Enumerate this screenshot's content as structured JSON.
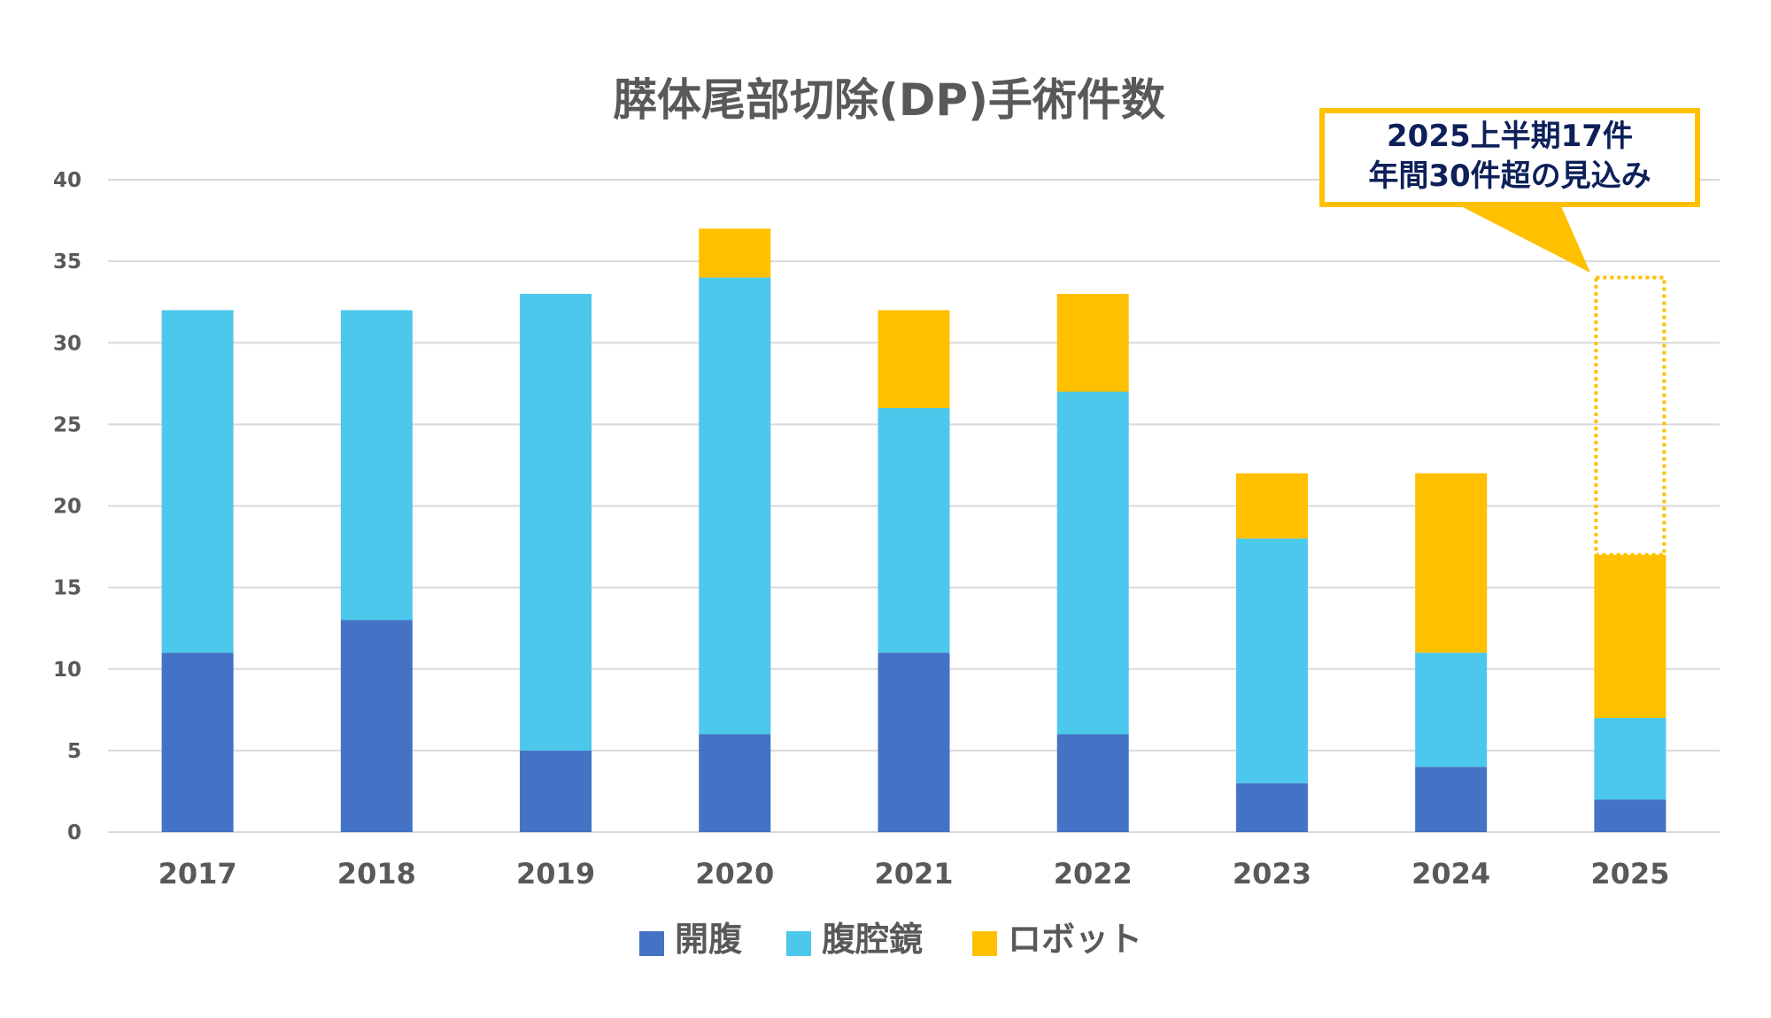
{
  "chart_data": {
    "type": "bar",
    "stacked": true,
    "title": "膵体尾部切除(DP)手術件数",
    "categories": [
      "2017",
      "2018",
      "2019",
      "2020",
      "2021",
      "2022",
      "2023",
      "2024",
      "2025"
    ],
    "series": [
      {
        "name": "開腹",
        "color": "#4472c4",
        "values": [
          11,
          13,
          5,
          6,
          11,
          6,
          3,
          4,
          2
        ]
      },
      {
        "name": "腹腔鏡",
        "color": "#4bc8eb",
        "values": [
          21,
          19,
          28,
          28,
          15,
          21,
          15,
          7,
          5
        ]
      },
      {
        "name": "ロボット",
        "color": "#ffc000",
        "values": [
          0,
          0,
          0,
          3,
          6,
          6,
          4,
          11,
          10
        ]
      }
    ],
    "projection": {
      "category": "2025",
      "from": 17,
      "to": 34,
      "style": "dotted outline",
      "color": "#ffc000"
    },
    "ylim": [
      0,
      40
    ],
    "yticks": [
      0,
      5,
      10,
      15,
      20,
      25,
      30,
      35,
      40
    ],
    "grid": true,
    "legend_position": "bottom",
    "annotation": {
      "line1": "2025上半期17件",
      "line2": "年間30件超の見込み",
      "border_color": "#ffc000",
      "text_color": "#0d2059"
    }
  }
}
